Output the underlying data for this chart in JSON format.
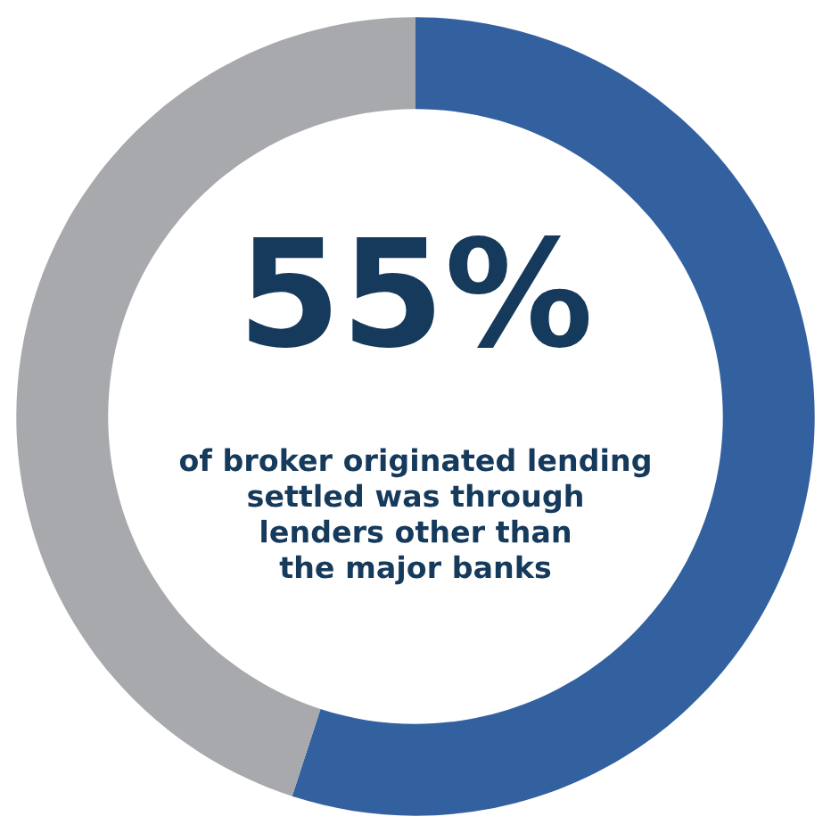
{
  "chart_data": {
    "type": "donut",
    "categories": [
      null,
      null
    ],
    "values": [
      55,
      45
    ],
    "colors": [
      "#33609f",
      "#a7a9ac"
    ],
    "annotations": [
      "55%",
      "of broker originated lending\nsettled was through\nlenders other than\nthe major banks"
    ]
  }
}
